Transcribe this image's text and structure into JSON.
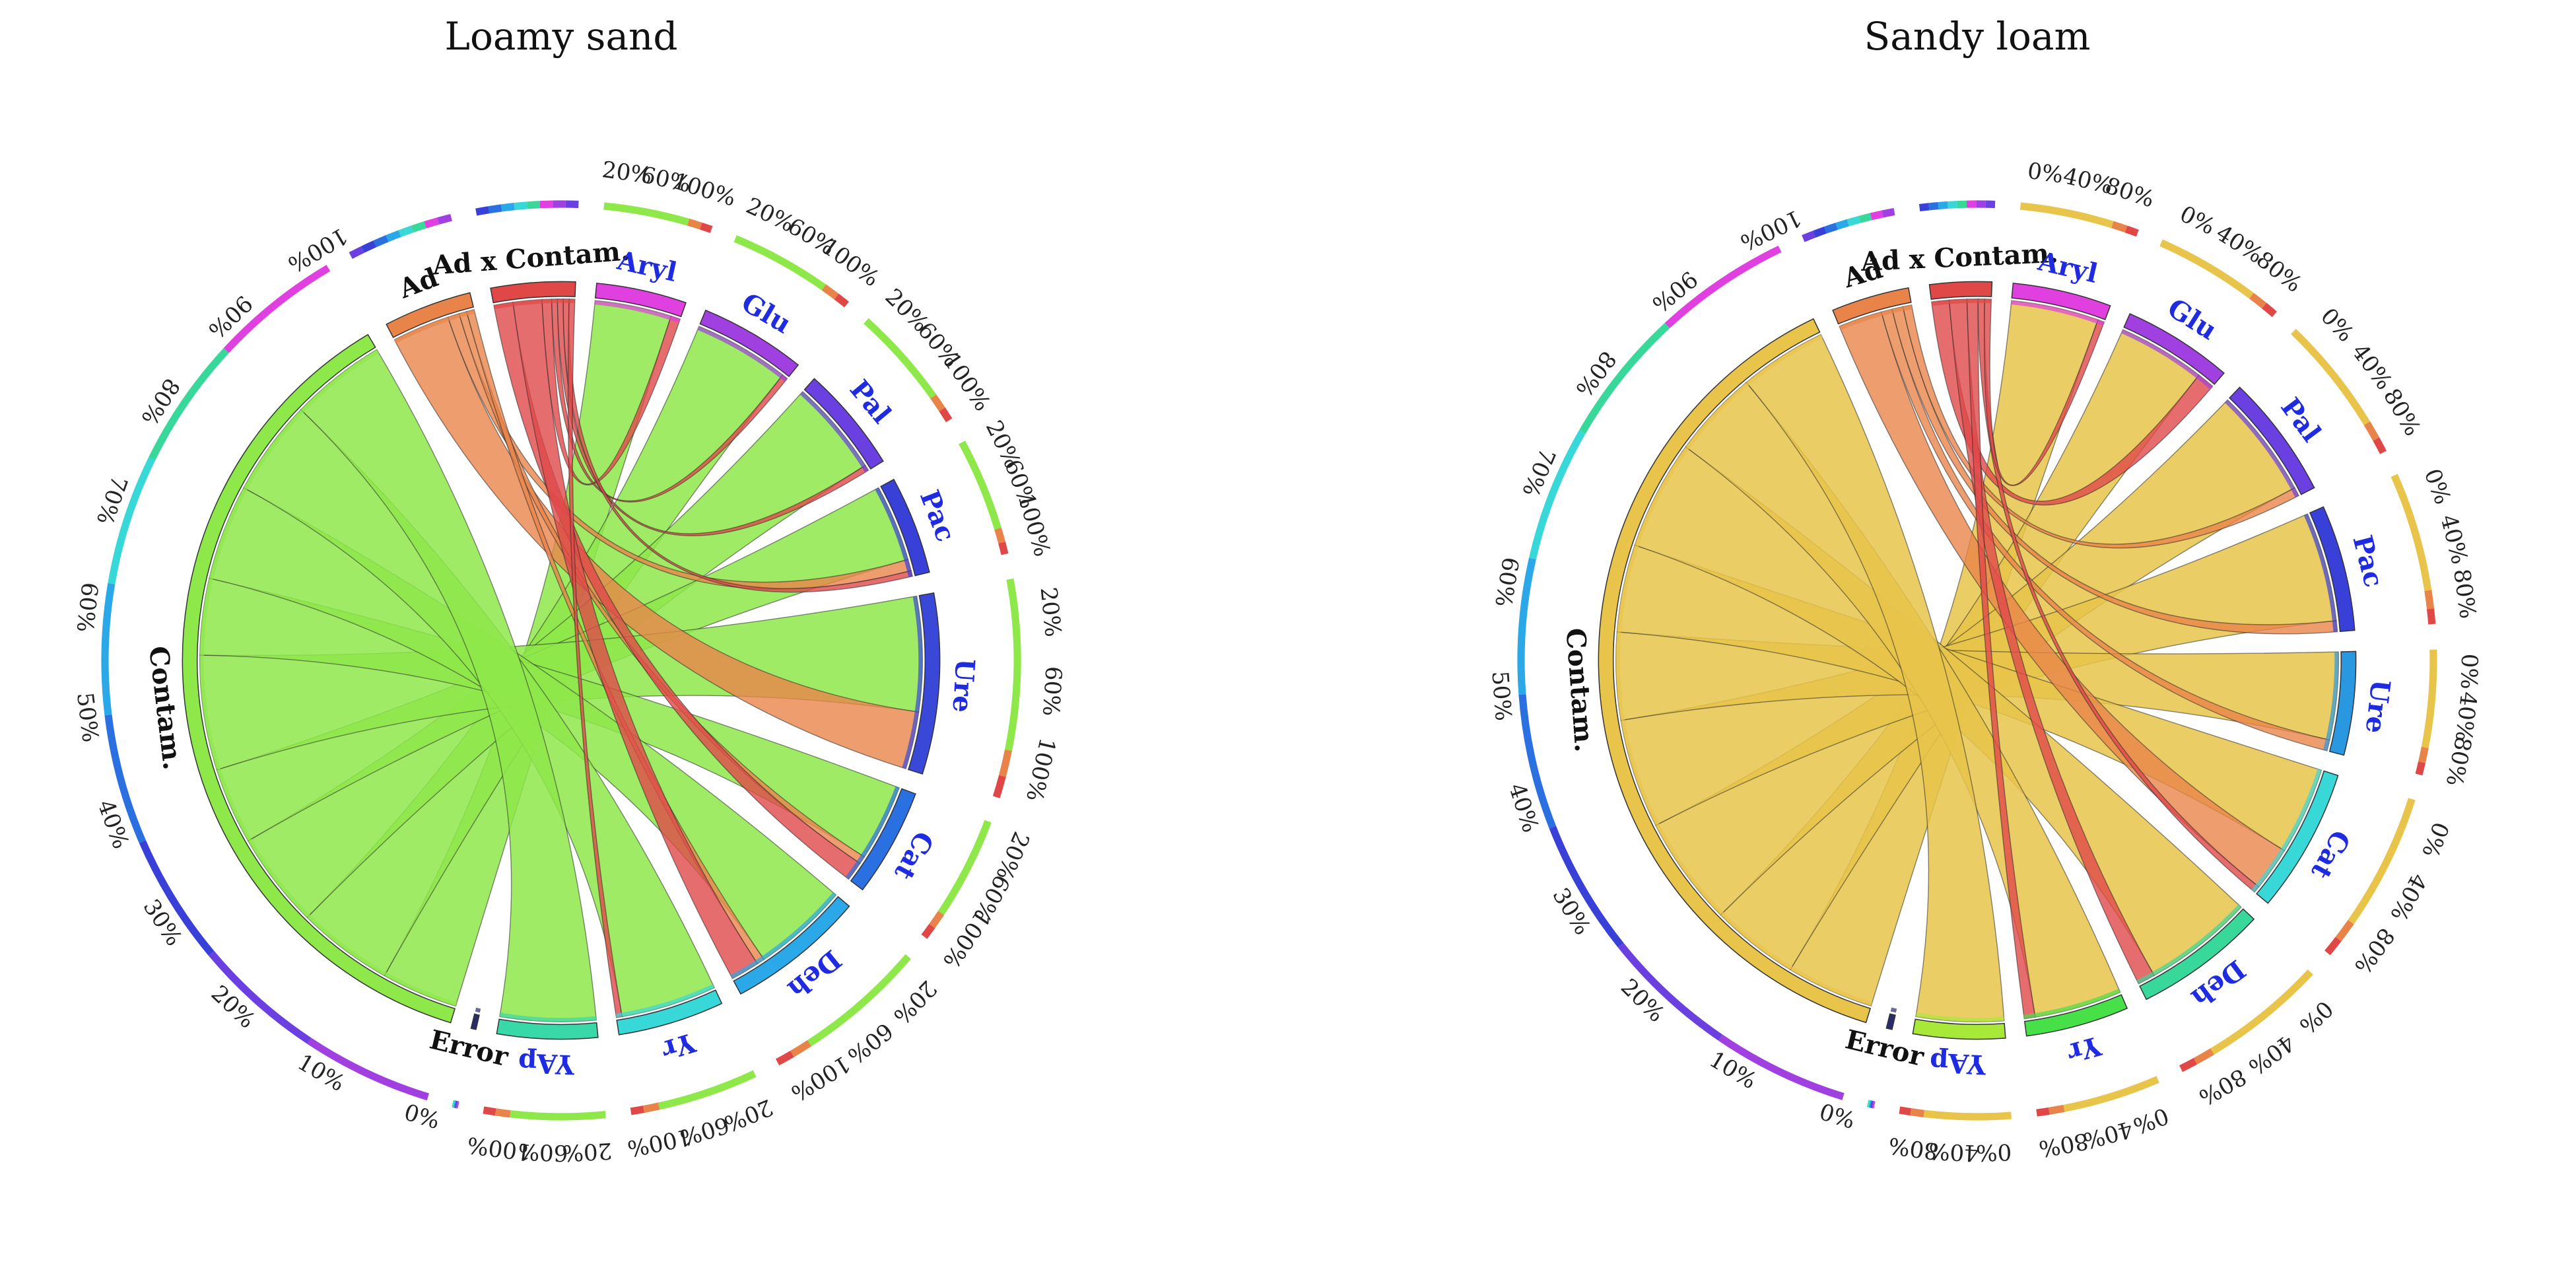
{
  "figure": {
    "panels": [
      "Loamy sand",
      "Sandy loam"
    ]
  },
  "chart_data": [
    {
      "type": "chord",
      "title": "Loamy sand",
      "source_sectors": [
        "Error",
        "Contam.",
        "Ad",
        "Ad x Contam."
      ],
      "target_sectors": [
        "Aryl",
        "Glu",
        "Pal",
        "Pac",
        "Ure",
        "Cat",
        "Deh",
        "Yr",
        "YAp"
      ],
      "sector_colors": {
        "Error": "#2a2a6e",
        "Contam.": "#8ee84a",
        "Ad": "#e8844a",
        "Ad x Contam.": "#e04848",
        "Aryl": "#e040e0",
        "Glu": "#a040e0",
        "Pal": "#6a40e0",
        "Pac": "#3840d8",
        "Ure": "#3a48d8",
        "Cat": "#2a70e0",
        "Deh": "#2aa8e8",
        "Yr": "#38d8d8",
        "YAp": "#38d8a8"
      },
      "source_ticks": [
        "0%",
        "10%",
        "20%",
        "30%",
        "40%",
        "50%",
        "60%",
        "70%",
        "80%",
        "90%",
        "100%"
      ],
      "target_ticks": [
        "20%",
        "60%",
        "100%"
      ],
      "links": [
        {
          "source": "Contam.",
          "target": "Aryl",
          "value": 4
        },
        {
          "source": "Contam.",
          "target": "Glu",
          "value": 5
        },
        {
          "source": "Contam.",
          "target": "Pal",
          "value": 5
        },
        {
          "source": "Contam.",
          "target": "Pac",
          "value": 4
        },
        {
          "source": "Contam.",
          "target": "Ure",
          "value": 6
        },
        {
          "source": "Contam.",
          "target": "Cat",
          "value": 4
        },
        {
          "source": "Contam.",
          "target": "Deh",
          "value": 5
        },
        {
          "source": "Contam.",
          "target": "Yr",
          "value": 5
        },
        {
          "source": "Contam.",
          "target": "YAp",
          "value": 5
        },
        {
          "source": "Ad",
          "target": "Ure",
          "value": 3
        },
        {
          "source": "Ad",
          "target": "Pac",
          "value": 0.6
        },
        {
          "source": "Ad",
          "target": "Cat",
          "value": 0.4
        },
        {
          "source": "Ad",
          "target": "Deh",
          "value": 0.4
        },
        {
          "source": "Ad x Contam.",
          "target": "Cat",
          "value": 1
        },
        {
          "source": "Ad x Contam.",
          "target": "Deh",
          "value": 1.5
        },
        {
          "source": "Ad x Contam.",
          "target": "Aryl",
          "value": 0.5
        },
        {
          "source": "Ad x Contam.",
          "target": "Glu",
          "value": 0.3
        },
        {
          "source": "Ad x Contam.",
          "target": "Pal",
          "value": 0.3
        },
        {
          "source": "Ad x Contam.",
          "target": "Pac",
          "value": 0.3
        },
        {
          "source": "Ad x Contam.",
          "target": "Yr",
          "value": 0.3
        }
      ]
    },
    {
      "type": "chord",
      "title": "Sandy loam",
      "source_sectors": [
        "Error",
        "Contam.",
        "Ad",
        "Ad x Contam."
      ],
      "target_sectors": [
        "Aryl",
        "Glu",
        "Pal",
        "Pac",
        "Ure",
        "Cat",
        "Deh",
        "Yr",
        "YAp"
      ],
      "sector_colors": {
        "Error": "#2a2a6e",
        "Contam.": "#e8c44a",
        "Ad": "#e8844a",
        "Ad x Contam.": "#e04848",
        "Aryl": "#e040e0",
        "Glu": "#a040e0",
        "Pal": "#6a40e0",
        "Pac": "#3840d8",
        "Ure": "#2a98e0",
        "Cat": "#38d8d8",
        "Deh": "#38d89a",
        "Yr": "#48e048",
        "YAp": "#a8e838"
      },
      "source_ticks": [
        "0%",
        "10%",
        "20%",
        "30%",
        "40%",
        "50%",
        "60%",
        "70%",
        "80%",
        "90%",
        "100%"
      ],
      "target_ticks": [
        "0%",
        "40%",
        "80%"
      ],
      "links": [
        {
          "source": "Contam.",
          "target": "Aryl",
          "value": 4
        },
        {
          "source": "Contam.",
          "target": "Glu",
          "value": 4
        },
        {
          "source": "Contam.",
          "target": "Pal",
          "value": 5
        },
        {
          "source": "Contam.",
          "target": "Pac",
          "value": 5
        },
        {
          "source": "Contam.",
          "target": "Ure",
          "value": 4
        },
        {
          "source": "Contam.",
          "target": "Cat",
          "value": 4
        },
        {
          "source": "Contam.",
          "target": "Deh",
          "value": 5
        },
        {
          "source": "Contam.",
          "target": "Yr",
          "value": 4
        },
        {
          "source": "Contam.",
          "target": "YAp",
          "value": 4
        },
        {
          "source": "Ad",
          "target": "Cat",
          "value": 2
        },
        {
          "source": "Ad",
          "target": "Ure",
          "value": 0.5
        },
        {
          "source": "Ad",
          "target": "Pac",
          "value": 0.5
        },
        {
          "source": "Ad",
          "target": "Pal",
          "value": 0.4
        },
        {
          "source": "Ad x Contam.",
          "target": "Glu",
          "value": 0.8
        },
        {
          "source": "Ad x Contam.",
          "target": "Deh",
          "value": 0.8
        },
        {
          "source": "Ad x Contam.",
          "target": "Yr",
          "value": 0.5
        },
        {
          "source": "Ad x Contam.",
          "target": "Cat",
          "value": 0.3
        },
        {
          "source": "Ad x Contam.",
          "target": "Aryl",
          "value": 0.3
        }
      ]
    }
  ]
}
